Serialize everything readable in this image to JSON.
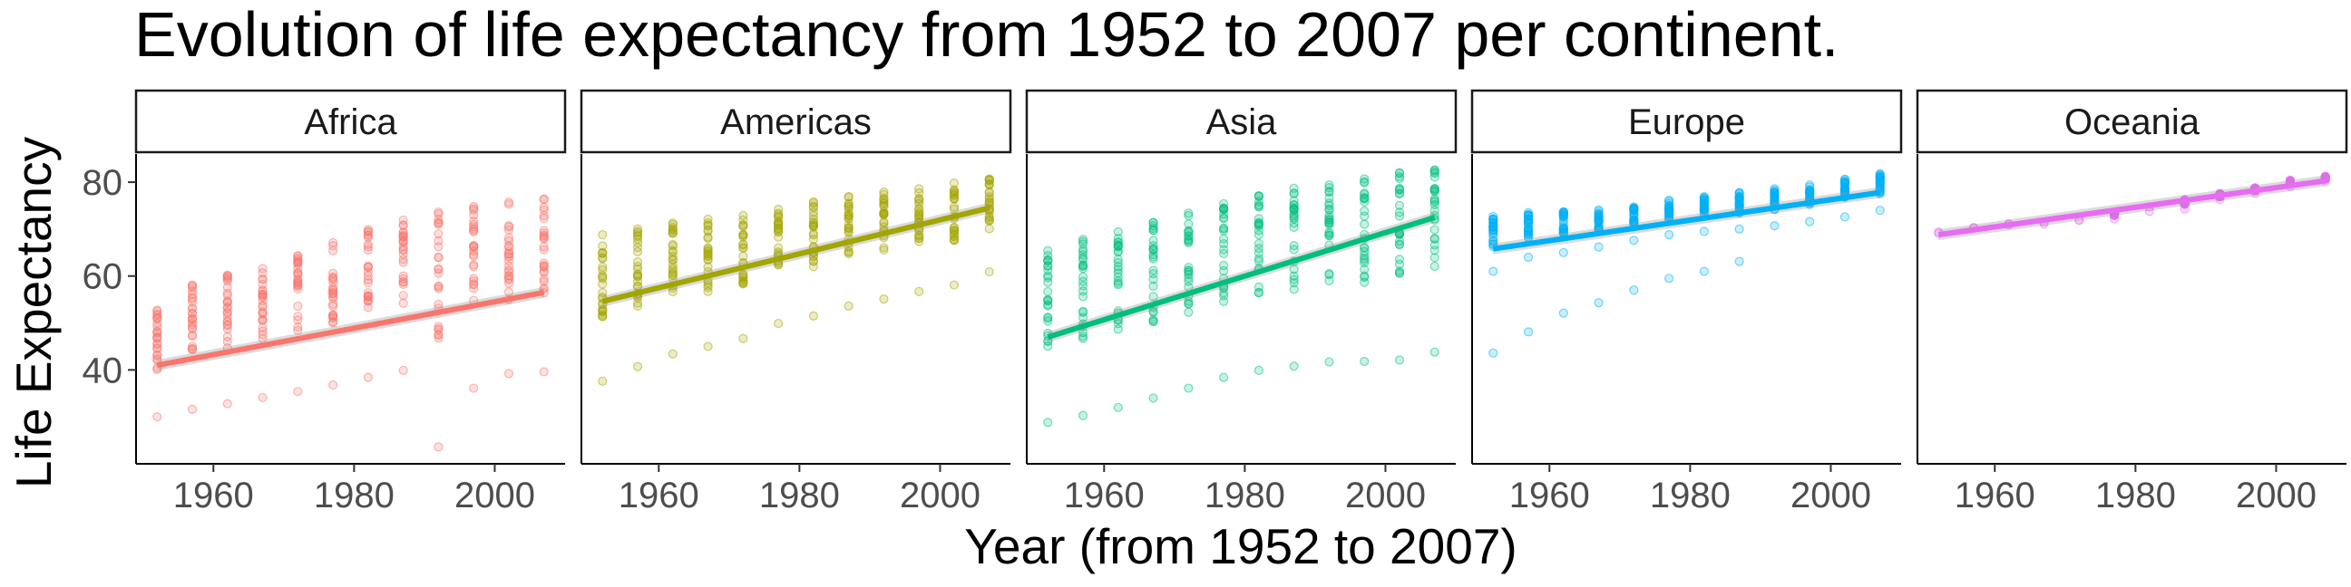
{
  "chart_data": {
    "type": "scatter",
    "title": "Evolution of life expectancy from 1952 to 2007 per continent.",
    "xlabel": "Year (from 1952 to 2007)",
    "ylabel": "Life Expectancy",
    "xlim": [
      1949,
      2010
    ],
    "ylim": [
      20,
      86
    ],
    "x_ticks": [
      1960,
      1980,
      2000
    ],
    "y_ticks": [
      40,
      60,
      80
    ],
    "x": [
      1952,
      1957,
      1962,
      1967,
      1972,
      1977,
      1982,
      1987,
      1992,
      1997,
      2002,
      2007
    ],
    "grid": false,
    "legend": "none",
    "facets": [
      {
        "name": "Africa",
        "color": "#F8766D",
        "trend": [
          41.0,
          56.5
        ],
        "ranges": [
          [
            30,
            52.7
          ],
          [
            31.6,
            58.1
          ],
          [
            32.8,
            60.2
          ],
          [
            34.1,
            61.6
          ],
          [
            35.4,
            64.3
          ],
          [
            36.8,
            67.1
          ],
          [
            38.4,
            69.9
          ],
          [
            39.9,
            71.9
          ],
          [
            23.6,
            73.6
          ],
          [
            36.1,
            74.8
          ],
          [
            39.2,
            75.7
          ],
          [
            39.6,
            76.4
          ]
        ],
        "outliers": []
      },
      {
        "name": "Americas",
        "color": "#A3A500",
        "trend": [
          54.6,
          74.5
        ],
        "ranges": [
          [
            37.6,
            68.8
          ],
          [
            40.7,
            70.0
          ],
          [
            43.4,
            71.3
          ],
          [
            45.0,
            72.1
          ],
          [
            46.7,
            72.9
          ],
          [
            49.9,
            74.2
          ],
          [
            51.5,
            75.8
          ],
          [
            53.6,
            76.9
          ],
          [
            55.1,
            77.9
          ],
          [
            56.7,
            78.6
          ],
          [
            58.1,
            79.8
          ],
          [
            60.9,
            80.7
          ]
        ],
        "outliers": []
      },
      {
        "name": "Asia",
        "color": "#00BF7D",
        "trend": [
          47.0,
          72.5
        ],
        "ranges": [
          [
            28.8,
            65.4
          ],
          [
            30.3,
            67.8
          ],
          [
            32.0,
            69.4
          ],
          [
            34.0,
            71.4
          ],
          [
            36.1,
            73.4
          ],
          [
            38.4,
            75.4
          ],
          [
            39.9,
            77.1
          ],
          [
            40.8,
            78.7
          ],
          [
            41.7,
            79.4
          ],
          [
            41.8,
            80.7
          ],
          [
            42.1,
            82.0
          ],
          [
            43.8,
            82.6
          ]
        ],
        "outliers": []
      },
      {
        "name": "Europe",
        "color": "#00B0F6",
        "trend": [
          65.8,
          77.8
        ],
        "ranges": [
          [
            61.0,
            72.7
          ],
          [
            64.0,
            73.5
          ],
          [
            65.0,
            73.7
          ],
          [
            66.2,
            74.1
          ],
          [
            67.6,
            74.7
          ],
          [
            68.8,
            76.1
          ],
          [
            69.5,
            76.9
          ],
          [
            70.0,
            77.8
          ],
          [
            70.7,
            78.6
          ],
          [
            71.6,
            79.4
          ],
          [
            72.6,
            80.6
          ],
          [
            74.0,
            81.8
          ]
        ],
        "outliers": [
          [
            1952,
            43.6
          ],
          [
            1957,
            48.1
          ],
          [
            1962,
            52.1
          ],
          [
            1967,
            54.3
          ],
          [
            1972,
            57.0
          ],
          [
            1977,
            59.5
          ],
          [
            1982,
            61.0
          ],
          [
            1987,
            63.1
          ]
        ]
      },
      {
        "name": "Oceania",
        "color": "#E76BF3",
        "trend": [
          68.8,
          80.3
        ],
        "ranges": [
          [
            69.1,
            69.4
          ],
          [
            70.3,
            70.3
          ],
          [
            70.9,
            71.2
          ],
          [
            71.1,
            71.5
          ],
          [
            71.9,
            71.9
          ],
          [
            72.2,
            73.5
          ],
          [
            73.8,
            74.7
          ],
          [
            74.3,
            76.3
          ],
          [
            76.3,
            77.6
          ],
          [
            77.6,
            78.8
          ],
          [
            79.1,
            80.4
          ],
          [
            80.2,
            81.2
          ]
        ],
        "outliers": []
      }
    ]
  }
}
